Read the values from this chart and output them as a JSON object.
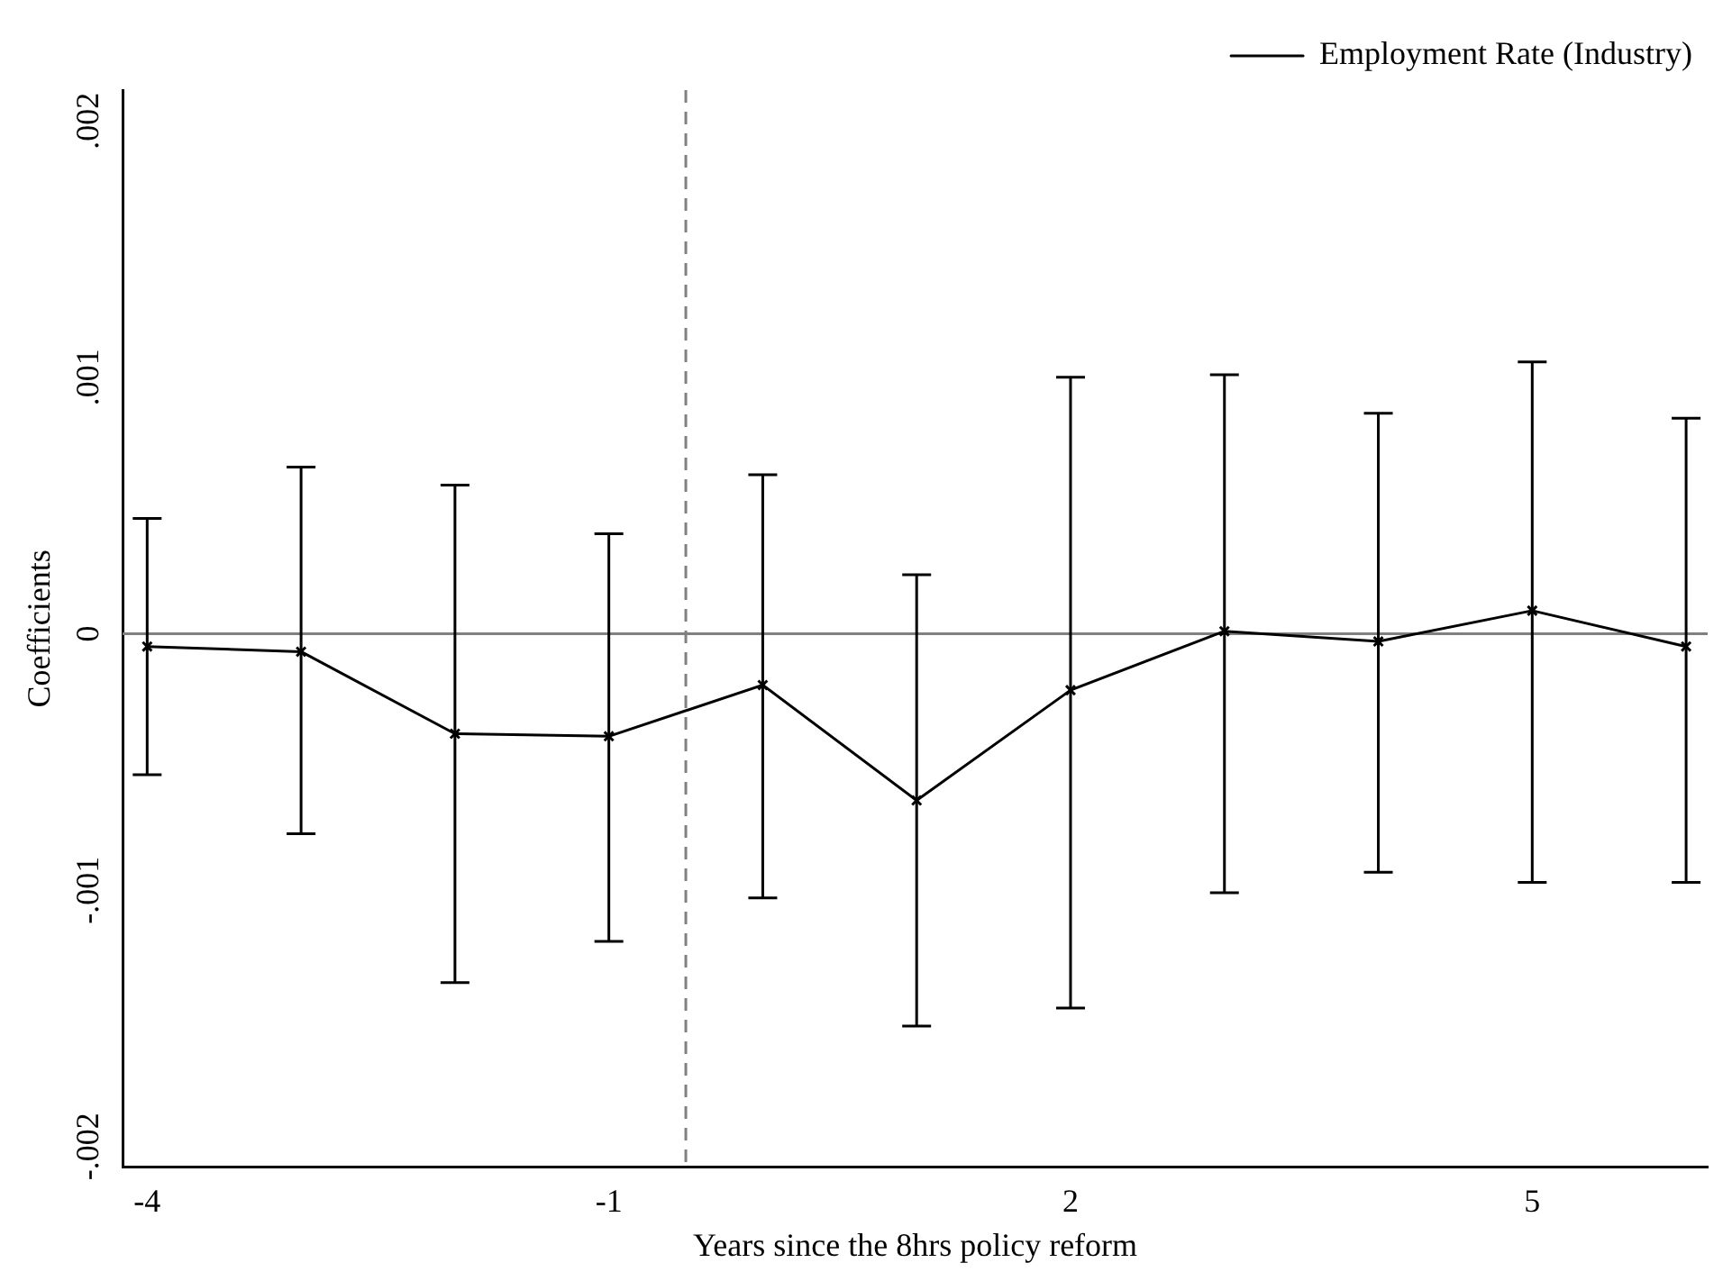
{
  "chart_data": {
    "type": "line",
    "xlabel": "Years since the 8hrs policy reform",
    "ylabel": "Coefficients",
    "x": [
      -4,
      -3,
      -2,
      -1,
      0,
      1,
      2,
      3,
      4,
      5,
      6
    ],
    "series": [
      {
        "name": "Employment Rate (Industry)",
        "color": "#000000",
        "values": [
          -5e-05,
          -7e-05,
          -0.00039,
          -0.0004,
          -0.0002,
          -0.00065,
          -0.00022,
          1e-05,
          -3e-05,
          9e-05,
          -5e-05
        ],
        "errors": [
          [
            -0.00055,
            0.00045
          ],
          [
            -0.00078,
            0.00065
          ],
          [
            -0.00136,
            0.00058
          ],
          [
            -0.0012,
            0.00039
          ],
          [
            -0.00103,
            0.00062
          ],
          [
            -0.00153,
            0.00023
          ],
          [
            -0.00146,
            0.001
          ],
          [
            -0.00101,
            0.00101
          ],
          [
            -0.00093,
            0.00086
          ],
          [
            -0.00097,
            0.00106
          ],
          [
            -0.00097,
            0.00084
          ]
        ]
      }
    ],
    "xlim": [
      -4.16,
      6.14
    ],
    "xticks": [
      -4,
      -1,
      2,
      5
    ],
    "ylim": [
      -0.00208,
      0.00212
    ],
    "yticks": [
      {
        "value": -0.002,
        "label": "-.002"
      },
      {
        "value": -0.001,
        "label": "-.001"
      },
      {
        "value": 0,
        "label": "0"
      },
      {
        "value": 0.001,
        "label": ".001"
      },
      {
        "value": 0.002,
        "label": ".002"
      }
    ],
    "ref_lines": [
      {
        "axis": "y",
        "value": 0,
        "color": "#808080",
        "line_style": "solid"
      },
      {
        "axis": "x",
        "value": -0.5,
        "color": "#808080",
        "line_style": "dashed"
      }
    ],
    "marker": "cross",
    "line_style": "solid",
    "legend": "top right",
    "grid": false
  }
}
